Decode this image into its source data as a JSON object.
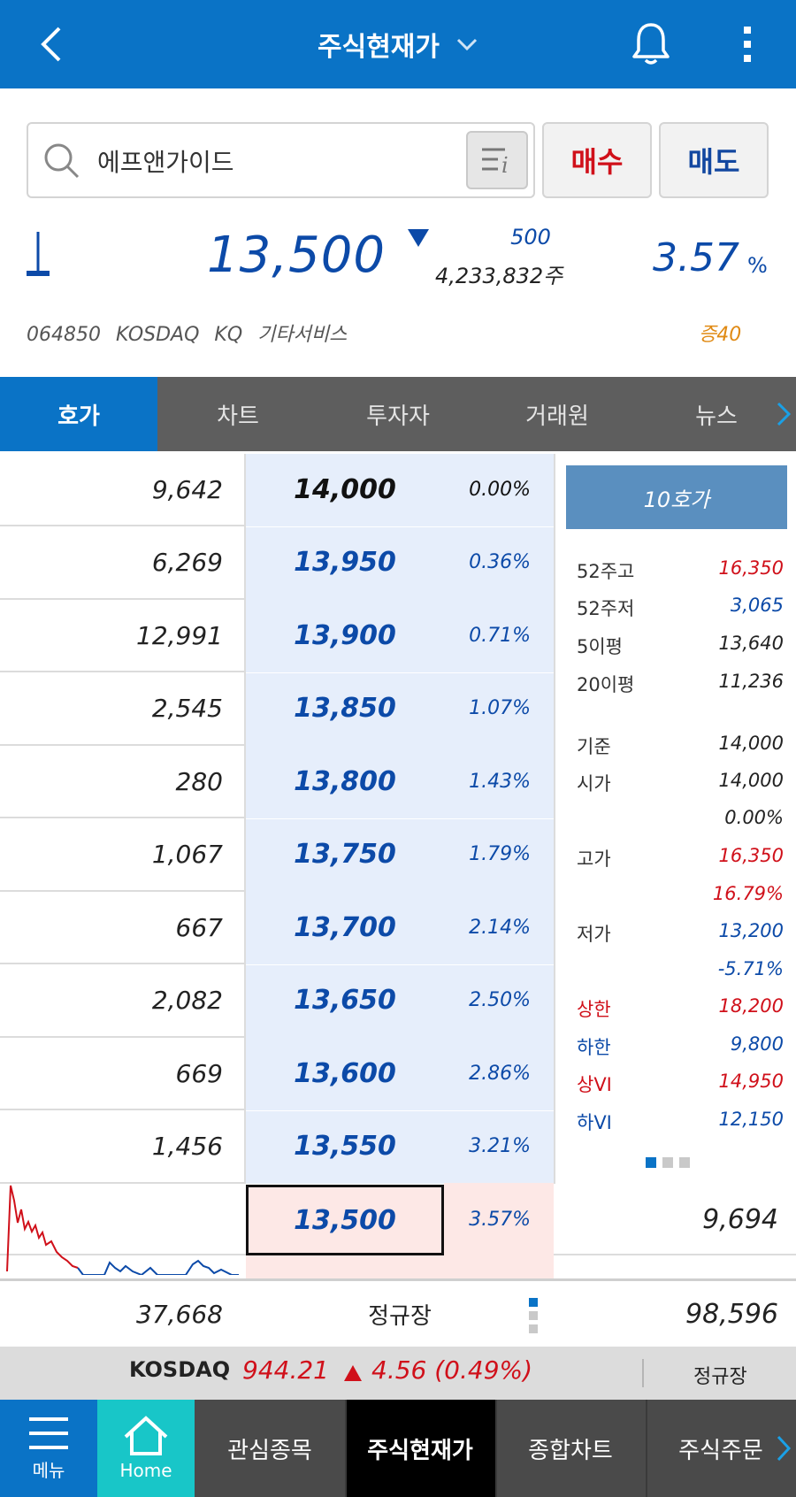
{
  "header": {
    "title": "주식현재가",
    "icons": {
      "back": "chevron-left-icon",
      "dropdown": "chevron-down-icon",
      "bell": "bell-icon",
      "more": "kebab-menu-icon"
    }
  },
  "search": {
    "value": "에프앤가이드",
    "icons": {
      "search": "search-icon",
      "filter": "stock-info-icon"
    }
  },
  "trade_buttons": {
    "buy": "매수",
    "sell": "매도"
  },
  "quote": {
    "price": "13,500",
    "change": "500",
    "volume": "4,233,832주",
    "rate": "3.57",
    "rate_unit": "%",
    "direction": "down",
    "code": "064850",
    "market": "KOSDAQ",
    "sector": "KQ 기타서비스",
    "margin": "증40"
  },
  "tabs": [
    {
      "label": "호가",
      "active": true
    },
    {
      "label": "차트",
      "active": false
    },
    {
      "label": "투자자",
      "active": false
    },
    {
      "label": "거래원",
      "active": false
    },
    {
      "label": "뉴스",
      "active": false
    }
  ],
  "orderbook": {
    "asks": [
      {
        "qty": "9,642",
        "price": "14,000",
        "pct": "0.00%",
        "color": "#111111"
      },
      {
        "qty": "6,269",
        "price": "13,950",
        "pct": "0.36%",
        "color": "#0c4aa8"
      },
      {
        "qty": "12,991",
        "price": "13,900",
        "pct": "0.71%",
        "color": "#0c4aa8"
      },
      {
        "qty": "2,545",
        "price": "13,850",
        "pct": "1.07%",
        "color": "#0c4aa8"
      },
      {
        "qty": "280",
        "price": "13,800",
        "pct": "1.43%",
        "color": "#0c4aa8"
      },
      {
        "qty": "1,067",
        "price": "13,750",
        "pct": "1.79%",
        "color": "#0c4aa8"
      },
      {
        "qty": "667",
        "price": "13,700",
        "pct": "2.14%",
        "color": "#0c4aa8"
      },
      {
        "qty": "2,082",
        "price": "13,650",
        "pct": "2.50%",
        "color": "#0c4aa8"
      },
      {
        "qty": "669",
        "price": "13,600",
        "pct": "2.86%",
        "color": "#0c4aa8"
      },
      {
        "qty": "1,456",
        "price": "13,550",
        "pct": "3.21%",
        "color": "#0c4aa8"
      }
    ],
    "current": {
      "price": "13,500",
      "pct": "3.57%",
      "bid_qty": "9,694"
    },
    "totals": {
      "ask": "37,668",
      "session": "정규장",
      "bid": "98,596"
    }
  },
  "side_panel": {
    "ten_button": "10호가",
    "stats": [
      {
        "label": "52주고",
        "value": "16,350",
        "color": "red"
      },
      {
        "label": "52주저",
        "value": "3,065",
        "color": "blue"
      },
      {
        "label": "5이평",
        "value": "13,640",
        "color": "dark"
      },
      {
        "label": "20이평",
        "value": "11,236",
        "color": "dark"
      },
      {
        "label": "기준",
        "value": "14,000",
        "color": "dark"
      },
      {
        "label": "시가",
        "value": "14,000",
        "color": "dark"
      },
      {
        "label": "",
        "value": "0.00%",
        "color": "dark"
      },
      {
        "label": "고가",
        "value": "16,350",
        "color": "red"
      },
      {
        "label": "",
        "value": "16.79%",
        "color": "red"
      },
      {
        "label": "저가",
        "value": "13,200",
        "color": "blue"
      },
      {
        "label": "",
        "value": "-5.71%",
        "color": "blue"
      },
      {
        "label": "상한",
        "value": "18,200",
        "color": "red"
      },
      {
        "label": "하한",
        "value": "9,800",
        "color": "blue"
      },
      {
        "label": "상VI",
        "value": "14,950",
        "color": "red"
      },
      {
        "label": "하VI",
        "value": "12,150",
        "color": "blue"
      }
    ]
  },
  "index_bar": {
    "name": "KOSDAQ",
    "value": "944.21",
    "change": "4.56 (0.49%)",
    "direction": "up",
    "session": "정규장"
  },
  "bottom_nav": {
    "menu": "메뉴",
    "home": "Home",
    "items": [
      "관심종목",
      "주식현재가",
      "종합차트",
      "주식주문"
    ],
    "active": "주식현재가",
    "icons": {
      "menu": "hamburger-icon",
      "home": "home-icon",
      "next": "chevron-right-icon"
    }
  },
  "colors": {
    "primary": "#0a73c6",
    "up": "#d0101a",
    "down": "#0c4aa8",
    "home": "#18c6c8",
    "margin": "#e08a14"
  }
}
